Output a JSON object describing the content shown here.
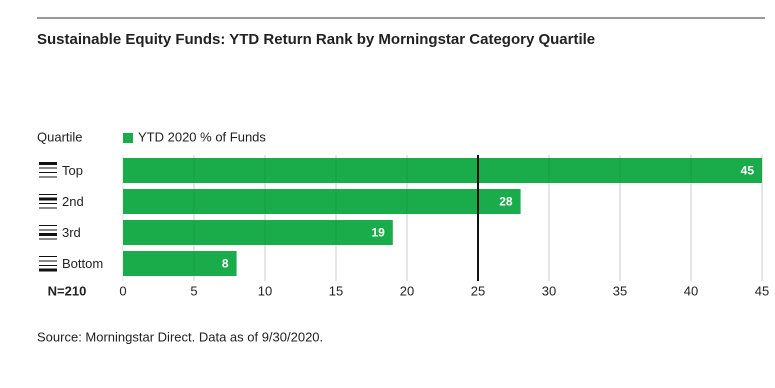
{
  "chart_data": {
    "type": "bar",
    "orientation": "horizontal",
    "title": "Sustainable Equity Funds: YTD Return Rank by Morningstar Category Quartile",
    "category_header": "Quartile",
    "categories": [
      "Top",
      "2nd",
      "3rd",
      "Bottom"
    ],
    "series": [
      {
        "name": "YTD 2020 % of Funds",
        "color": "#1aab4b",
        "values": [
          45,
          28,
          19,
          8
        ]
      }
    ],
    "xlim": [
      0,
      45
    ],
    "xticks": [
      0,
      5,
      10,
      15,
      20,
      25,
      30,
      35,
      40,
      45
    ],
    "reference_line": 25,
    "sample_size": "N=210",
    "grid": true,
    "source": "Source: Morningstar Direct. Data as of 9/30/2020."
  }
}
